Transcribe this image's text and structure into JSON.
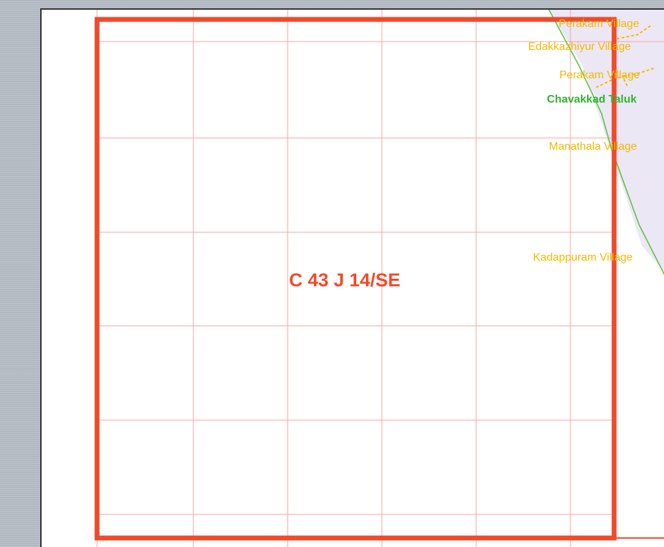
{
  "map": {
    "sheet_id": "C 43 J 14/SE",
    "taluk": "Chavakkad Taluk",
    "villages": [
      "Perakam Village",
      "Edakkazhiyur Village",
      "Perakam Village",
      "Manathala Village",
      "Kadappuram Village"
    ]
  },
  "colors": {
    "sheet_border": "#f04a2a",
    "grid": "#f7a0a0",
    "boundary": "#5cc23c",
    "village_label": "#f5b800",
    "taluk_label": "#2fb52f",
    "region_fill": "#ece7f5"
  }
}
